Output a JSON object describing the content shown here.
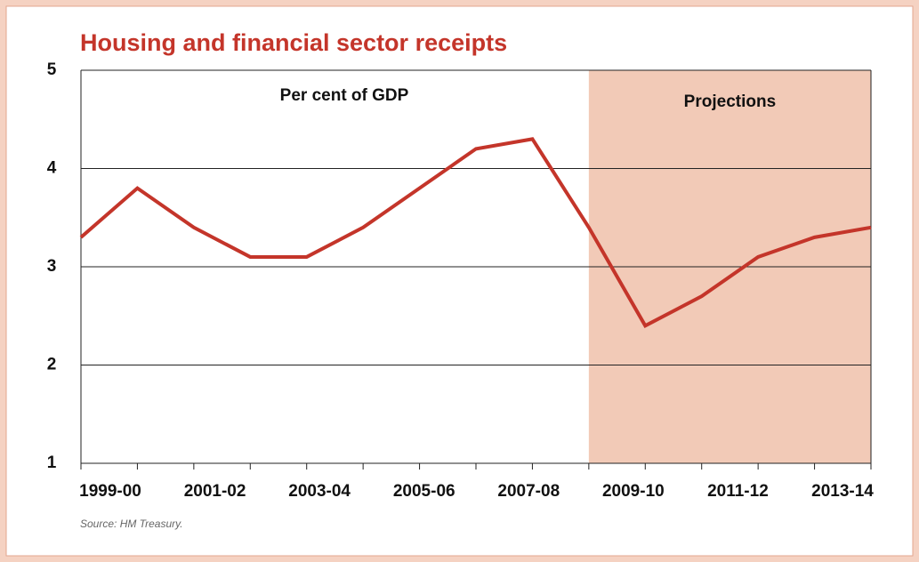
{
  "chart_data": {
    "type": "line",
    "title": "Housing and financial sector receipts",
    "subtitle": "Per cent of GDP",
    "source": "Source: HM Treasury.",
    "categories": [
      "1999-00",
      null,
      "2001-02",
      null,
      "2003-04",
      null,
      "2005-06",
      null,
      "2007-08",
      null,
      "2009-10",
      null,
      "2011-12",
      null,
      "2013-14"
    ],
    "values": [
      3.3,
      3.8,
      3.4,
      3.1,
      3.1,
      3.4,
      3.8,
      4.2,
      4.3,
      3.4,
      2.4,
      2.7,
      3.1,
      3.3,
      3.4
    ],
    "color": "#c4352a",
    "ylim": [
      1,
      5
    ],
    "yticks": [
      1,
      2,
      3,
      4,
      5
    ],
    "grid": true,
    "shaded_region": {
      "label": "Projections",
      "start": 9,
      "color": "#f2cab7"
    }
  }
}
